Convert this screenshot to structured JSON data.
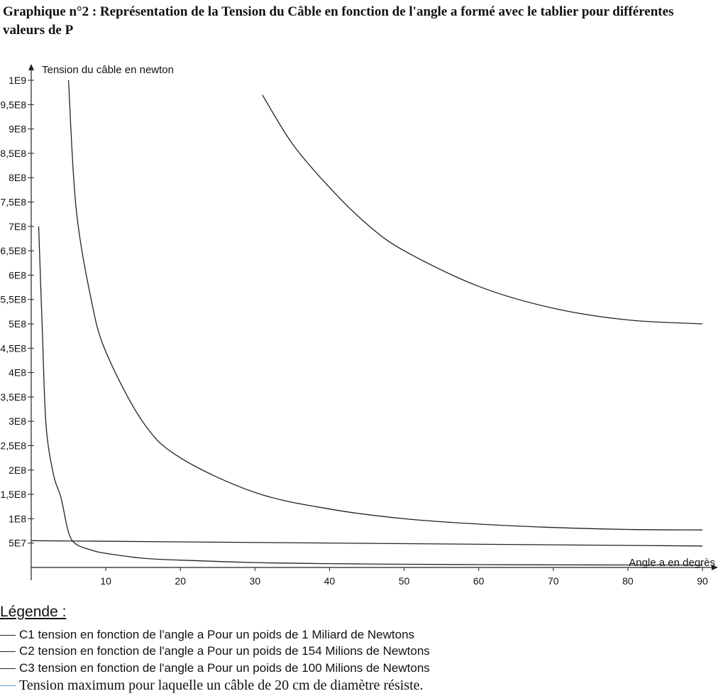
{
  "chart_data": {
    "type": "line",
    "title": "Graphique n°2 : Représentation de la Tension du Câble en fonction de l'angle a formé avec le tablier pour différentes valeurs de P",
    "xlabel": "Angle a en degrès",
    "ylabel": "Tension du câble en newton",
    "xlim": [
      0,
      90
    ],
    "ylim": [
      0,
      1000000000
    ],
    "x_ticks": [
      10,
      20,
      30,
      40,
      50,
      60,
      70,
      80,
      90
    ],
    "x_tick_labels": [
      "10",
      "20",
      "30",
      "40",
      "50",
      "60",
      "70",
      "80",
      "90"
    ],
    "y_ticks": [
      50000000,
      100000000,
      150000000,
      200000000,
      250000000,
      300000000,
      350000000,
      400000000,
      450000000,
      500000000,
      550000000,
      600000000,
      650000000,
      700000000,
      750000000,
      800000000,
      850000000,
      900000000,
      950000000,
      1000000000
    ],
    "y_tick_labels": [
      "5E7",
      "1E8",
      "1,5E8",
      "2E8",
      "2,5E8",
      "3E8",
      "3,5E8",
      "4E8",
      "4,5E8",
      "5E8",
      "5,5E8",
      "6E8",
      "6,5E8",
      "7E8",
      "7,5E8",
      "8E8",
      "8,5E8",
      "9E8",
      "9,5E8",
      "1E9"
    ],
    "grid": false,
    "legend_title": "Légende :",
    "series": [
      {
        "name": "C1",
        "kind": "curve",
        "color": "#222222",
        "x": [
          31,
          35,
          40,
          45,
          50,
          60,
          70,
          80,
          90
        ],
        "y": [
          970000000,
          870000000,
          780000000,
          705000000,
          650000000,
          577000000,
          532000000,
          508000000,
          500000000
        ]
      },
      {
        "name": "C2",
        "kind": "curve",
        "color": "#222222",
        "x": [
          5,
          6,
          8,
          10,
          15,
          20,
          30,
          40,
          50,
          60,
          70,
          80,
          90
        ],
        "y": [
          1000000000,
          740000000,
          553000000,
          443000000,
          298000000,
          225000000,
          154000000,
          120000000,
          100000000,
          89000000,
          82000000,
          78000000,
          77000000
        ]
      },
      {
        "name": "C3",
        "kind": "curve",
        "color": "#222222",
        "x": [
          1,
          1.5,
          2,
          3,
          4,
          5,
          6,
          8,
          10,
          15,
          20,
          30,
          40,
          50,
          60,
          70,
          80,
          90
        ],
        "y": [
          700000000,
          480000000,
          290000000,
          190000000,
          143000000,
          72000000,
          48000000,
          36000000,
          29000000,
          19000000,
          15000000,
          10000000,
          7800000,
          6500000,
          5800000,
          5300000,
          5100000,
          5000000
        ]
      },
      {
        "name": "Tension maximum",
        "kind": "line",
        "color": "#222222",
        "x": [
          0,
          90
        ],
        "y": [
          55000000,
          44000000
        ]
      }
    ],
    "legend": [
      "C1 tension en fonction de l'angle a Pour un poids de 1 Miliard de Newtons",
      "C2 tension en fonction de l'angle a Pour un poids de 154 Milions de Newtons",
      "C3 tension en fonction de l'angle a Pour un poids de 100 Milions de Newtons",
      "Tension maximum pour laquelle un câble de 20 cm de diamètre résiste."
    ]
  }
}
